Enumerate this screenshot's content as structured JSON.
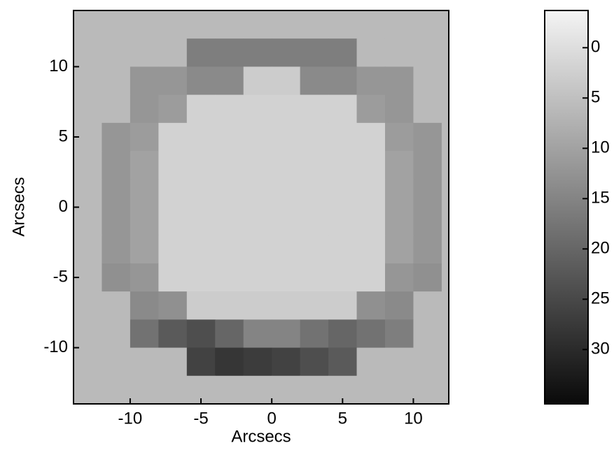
{
  "chart_data": {
    "type": "heatmap",
    "x_label": "Arcsecs",
    "y_label": "Arcsecs",
    "x": [
      -13,
      -11,
      -9,
      -7,
      -5,
      -3,
      -1,
      1,
      3,
      5,
      7,
      9,
      11,
      13
    ],
    "y": [
      13,
      11,
      9,
      7,
      5,
      3,
      1,
      -1,
      -3,
      -5,
      -7,
      -9,
      -11,
      -13
    ],
    "values": [
      [
        6,
        6,
        6,
        6,
        6,
        6,
        6,
        6,
        6,
        6,
        6,
        6,
        6,
        6
      ],
      [
        6,
        6,
        6,
        6,
        16,
        16,
        16,
        16,
        16,
        16,
        6,
        6,
        6,
        6
      ],
      [
        6,
        6,
        12,
        12,
        14,
        14,
        3,
        3,
        14,
        14,
        12,
        12,
        6,
        6
      ],
      [
        6,
        6,
        12,
        11,
        2,
        2,
        2,
        2,
        2,
        2,
        11,
        12,
        6,
        6
      ],
      [
        6,
        12,
        11,
        2,
        2,
        2,
        2,
        2,
        2,
        2,
        2,
        11,
        12,
        6
      ],
      [
        6,
        12,
        10,
        2,
        2,
        2,
        2,
        2,
        2,
        2,
        2,
        10,
        12,
        6
      ],
      [
        6,
        12,
        10,
        2,
        2,
        2,
        2,
        2,
        2,
        2,
        2,
        10,
        12,
        6
      ],
      [
        6,
        12,
        10,
        2,
        2,
        2,
        2,
        2,
        2,
        2,
        2,
        10,
        12,
        6
      ],
      [
        6,
        12,
        10,
        2,
        2,
        2,
        2,
        2,
        2,
        2,
        2,
        10,
        12,
        6
      ],
      [
        6,
        13,
        12,
        2,
        2,
        2,
        2,
        2,
        2,
        2,
        2,
        12,
        13,
        6
      ],
      [
        6,
        6,
        14,
        13,
        3,
        3,
        3,
        3,
        3,
        3,
        13,
        14,
        6,
        6
      ],
      [
        6,
        6,
        18,
        22,
        24,
        20,
        15,
        15,
        18,
        20,
        18,
        16,
        6,
        6
      ],
      [
        6,
        6,
        6,
        6,
        26,
        28,
        27,
        26,
        24,
        22,
        6,
        6,
        6,
        6
      ],
      [
        6,
        6,
        6,
        6,
        6,
        6,
        6,
        6,
        6,
        6,
        6,
        6,
        6,
        6
      ]
    ],
    "xlim": [
      -14,
      12.5
    ],
    "ylim": [
      -14,
      14
    ],
    "xticks": [
      -10,
      -5,
      0,
      5,
      10
    ],
    "yticks": [
      10,
      5,
      0,
      -5,
      -10
    ],
    "colorbar": {
      "clim": [
        -3.7,
        35.4
      ],
      "ticks": [
        0,
        5,
        10,
        15,
        20,
        25,
        30
      ]
    },
    "colormap": [
      "#f4f4f4",
      "#0a0a0a"
    ]
  }
}
